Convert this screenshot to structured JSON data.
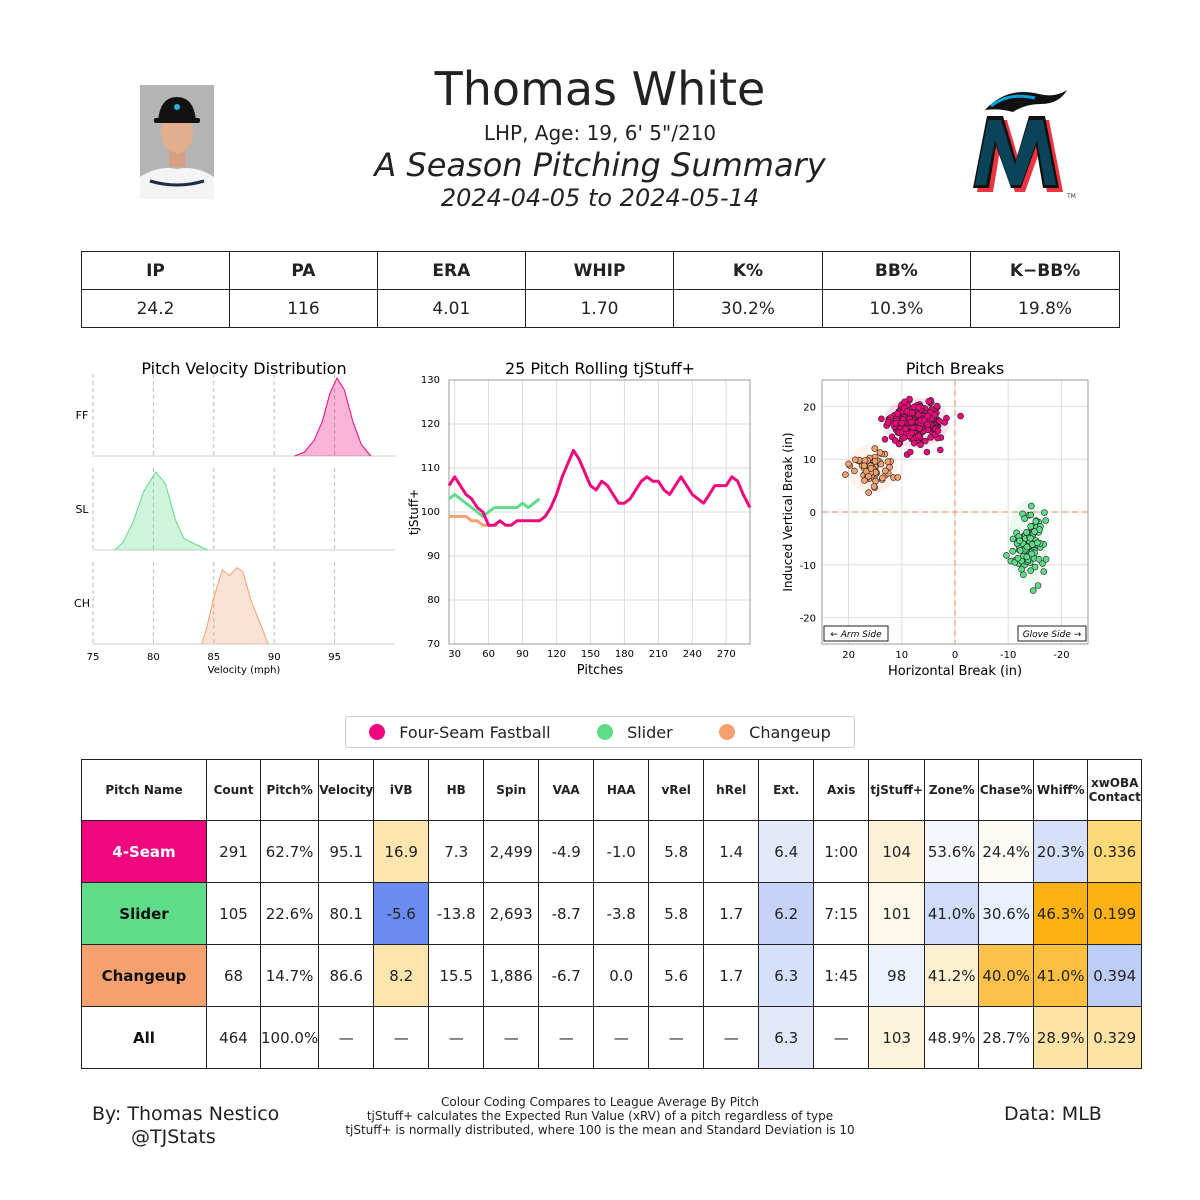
{
  "header": {
    "name": "Thomas White",
    "bio": "LHP, Age: 19, 6' 5\"/210",
    "summary": "A Season Pitching Summary",
    "dates": "2024-04-05 to 2024-05-14"
  },
  "stats": {
    "headers": [
      "IP",
      "PA",
      "ERA",
      "WHIP",
      "K%",
      "BB%",
      "K−BB%"
    ],
    "values": [
      "24.2",
      "116",
      "4.01",
      "1.70",
      "30.2%",
      "10.3%",
      "19.8%"
    ]
  },
  "colors": {
    "four_seam": "#f0077d",
    "slider": "#5fdc8a",
    "changeup": "#f5a06f"
  },
  "chart_data": [
    {
      "type": "area",
      "title": "Pitch Velocity Distribution",
      "xlabel": "Velocity (mph)",
      "xlim": [
        75,
        100
      ],
      "xticks": [
        75,
        80,
        85,
        90,
        95
      ],
      "series": [
        {
          "name": "FF",
          "points": [
            [
              91.7,
              0.0
            ],
            [
              92.5,
              0.05
            ],
            [
              93.3,
              0.2
            ],
            [
              94.0,
              0.45
            ],
            [
              94.6,
              0.8
            ],
            [
              95.2,
              1.0
            ],
            [
              95.8,
              0.85
            ],
            [
              96.5,
              0.45
            ],
            [
              97.2,
              0.15
            ],
            [
              98.0,
              0.0
            ]
          ]
        },
        {
          "name": "SL",
          "points": [
            [
              76.8,
              0.0
            ],
            [
              77.5,
              0.1
            ],
            [
              78.3,
              0.35
            ],
            [
              79.2,
              0.75
            ],
            [
              80.2,
              1.0
            ],
            [
              81.0,
              0.85
            ],
            [
              81.8,
              0.4
            ],
            [
              82.5,
              0.15
            ],
            [
              83.5,
              0.07
            ],
            [
              84.5,
              0.0
            ]
          ]
        },
        {
          "name": "CH",
          "points": [
            [
              84.0,
              0.0
            ],
            [
              84.4,
              0.2
            ],
            [
              85.0,
              0.6
            ],
            [
              85.7,
              0.95
            ],
            [
              86.3,
              0.88
            ],
            [
              86.9,
              0.98
            ],
            [
              87.4,
              0.93
            ],
            [
              88.1,
              0.55
            ],
            [
              89.0,
              0.2
            ],
            [
              89.5,
              0.0
            ]
          ]
        }
      ]
    },
    {
      "type": "line",
      "title": "25 Pitch Rolling tjStuff+",
      "xlabel": "Pitches",
      "ylabel": "tjStuff+",
      "xlim": [
        25,
        291
      ],
      "ylim": [
        70,
        130
      ],
      "xticks": [
        30,
        60,
        90,
        120,
        150,
        180,
        210,
        240,
        270
      ],
      "yticks": [
        70,
        80,
        90,
        100,
        110,
        120,
        130
      ],
      "series": [
        {
          "name": "Four-Seam Fastball",
          "points": [
            [
              25,
              106
            ],
            [
              30,
              108
            ],
            [
              35,
              106
            ],
            [
              40,
              104
            ],
            [
              45,
              103
            ],
            [
              50,
              101
            ],
            [
              55,
              100
            ],
            [
              60,
              97
            ],
            [
              65,
              97
            ],
            [
              70,
              98
            ],
            [
              75,
              97
            ],
            [
              80,
              97
            ],
            [
              85,
              98
            ],
            [
              90,
              98
            ],
            [
              95,
              98
            ],
            [
              100,
              98
            ],
            [
              105,
              98
            ],
            [
              110,
              99
            ],
            [
              115,
              101
            ],
            [
              120,
              104
            ],
            [
              125,
              108
            ],
            [
              130,
              111
            ],
            [
              135,
              114
            ],
            [
              140,
              112
            ],
            [
              145,
              109
            ],
            [
              150,
              106
            ],
            [
              155,
              105
            ],
            [
              160,
              107
            ],
            [
              165,
              106
            ],
            [
              170,
              104
            ],
            [
              175,
              102
            ],
            [
              180,
              102
            ],
            [
              185,
              103
            ],
            [
              190,
              105
            ],
            [
              195,
              107
            ],
            [
              200,
              108
            ],
            [
              205,
              107
            ],
            [
              210,
              107
            ],
            [
              215,
              105
            ],
            [
              220,
              104
            ],
            [
              225,
              106
            ],
            [
              230,
              108
            ],
            [
              235,
              106
            ],
            [
              240,
              104
            ],
            [
              245,
              103
            ],
            [
              250,
              102
            ],
            [
              255,
              104
            ],
            [
              260,
              106
            ],
            [
              265,
              106
            ],
            [
              270,
              106
            ],
            [
              275,
              108
            ],
            [
              280,
              107
            ],
            [
              285,
              104
            ],
            [
              291,
              101
            ]
          ]
        },
        {
          "name": "Slider",
          "points": [
            [
              25,
              103
            ],
            [
              30,
              104
            ],
            [
              35,
              103
            ],
            [
              40,
              102
            ],
            [
              45,
              101
            ],
            [
              50,
              100
            ],
            [
              55,
              99
            ],
            [
              60,
              100
            ],
            [
              65,
              101
            ],
            [
              70,
              101
            ],
            [
              75,
              101
            ],
            [
              80,
              101
            ],
            [
              85,
              101
            ],
            [
              90,
              102
            ],
            [
              95,
              101
            ],
            [
              100,
              102
            ],
            [
              105,
              103
            ]
          ]
        },
        {
          "name": "Changeup",
          "points": [
            [
              25,
              99
            ],
            [
              30,
              99
            ],
            [
              35,
              99
            ],
            [
              40,
              99
            ],
            [
              45,
              98
            ],
            [
              50,
              98
            ],
            [
              55,
              97
            ],
            [
              60,
              97
            ],
            [
              65,
              97
            ],
            [
              68,
              97
            ]
          ]
        }
      ]
    },
    {
      "type": "scatter",
      "title": "Pitch Breaks",
      "xlabel": "Horizontal Break (in)",
      "ylabel": "Induced Vertical Break (in)",
      "xlim": [
        25,
        -25
      ],
      "ylim": [
        -25,
        25
      ],
      "xticks": [
        20,
        10,
        0,
        -10,
        -20
      ],
      "yticks": [
        -20,
        -10,
        0,
        10,
        20
      ],
      "annotations": [
        "← Arm Side",
        "Glove Side →"
      ],
      "series": [
        {
          "name": "Four-Seam Fastball",
          "n": 291,
          "center": [
            7.3,
            16.9
          ],
          "spread": [
            2.4,
            1.8
          ]
        },
        {
          "name": "Slider",
          "n": 105,
          "center": [
            -13.8,
            -5.6
          ],
          "spread": [
            1.5,
            3.0
          ]
        },
        {
          "name": "Changeup",
          "n": 68,
          "center": [
            15.5,
            8.2
          ],
          "spread": [
            1.8,
            1.8
          ]
        }
      ]
    }
  ],
  "legend": [
    "Four-Seam Fastball",
    "Slider",
    "Changeup"
  ],
  "pitch_table": {
    "headers": [
      "Pitch Name",
      "Count",
      "Pitch%",
      "Velocity",
      "iVB",
      "HB",
      "Spin",
      "VAA",
      "HAA",
      "vRel",
      "hRel",
      "Ext.",
      "Axis",
      "tjStuff+",
      "Zone%",
      "Chase%",
      "Whiff%",
      "xwOBA\nContact"
    ],
    "rows": [
      {
        "name": "4-Seam",
        "color": "#f0077d",
        "text_color": "#ffffff",
        "cells": [
          "291",
          "62.7%",
          "95.1",
          "16.9",
          "7.3",
          "2,499",
          "-4.9",
          "-1.0",
          "5.8",
          "1.4",
          "6.4",
          "1:00",
          "104",
          "53.6%",
          "24.4%",
          "20.3%",
          "0.336"
        ],
        "shades": {
          "3": "#fde5b0",
          "10": "#e3e9fa",
          "12": "#fdf2d8",
          "13": "#f5f7fd",
          "14": "#fdfbf5",
          "15": "#d6e0fa",
          "16": "#fdd978"
        }
      },
      {
        "name": "Slider",
        "color": "#5fdc8a",
        "text_color": "#111111",
        "cells": [
          "105",
          "22.6%",
          "80.1",
          "-5.6",
          "-13.8",
          "2,693",
          "-8.7",
          "-3.8",
          "5.8",
          "1.7",
          "6.2",
          "7:15",
          "101",
          "41.0%",
          "30.6%",
          "46.3%",
          "0.199"
        ],
        "shades": {
          "3": "#6a8bf0",
          "10": "#c5d3f8",
          "12": "#fdf8ea",
          "13": "#d0dcf9",
          "14": "#eaf0fd",
          "15": "#fcb214",
          "16": "#fcb214"
        }
      },
      {
        "name": "Changeup",
        "color": "#f5a06f",
        "text_color": "#111111",
        "cells": [
          "68",
          "14.7%",
          "86.6",
          "8.2",
          "15.5",
          "1,886",
          "-6.7",
          "0.0",
          "5.6",
          "1.7",
          "6.3",
          "1:45",
          "98",
          "41.2%",
          "40.0%",
          "41.0%",
          "0.394"
        ],
        "shades": {
          "3": "#fde4ad",
          "10": "#d5e0fa",
          "12": "#edf2fd",
          "13": "#fdefd0",
          "14": "#fcc24a",
          "15": "#fcbf3f",
          "16": "#bccdf7"
        }
      },
      {
        "name": "All",
        "color": "#ffffff",
        "text_color": "#111111",
        "cells": [
          "464",
          "100.0%",
          "—",
          "—",
          "—",
          "—",
          "—",
          "—",
          "—",
          "—",
          "6.3",
          "—",
          "103",
          "48.9%",
          "28.7%",
          "28.9%",
          "0.329"
        ],
        "shades": {
          "10": "#e2e8fa",
          "12": "#fdf4dc",
          "15": "#fde3a6",
          "16": "#fde3a6"
        }
      }
    ]
  },
  "footer": {
    "by": "By: Thomas Nestico",
    "handle": "@TJStats",
    "notes": [
      "Colour Coding Compares to League Average By Pitch",
      "tjStuff+ calculates the Expected Run Value (xRV) of a pitch regardless of type",
      "tjStuff+ is normally distributed, where 100 is the mean and Standard Deviation is 10"
    ],
    "source": "Data: MLB"
  }
}
